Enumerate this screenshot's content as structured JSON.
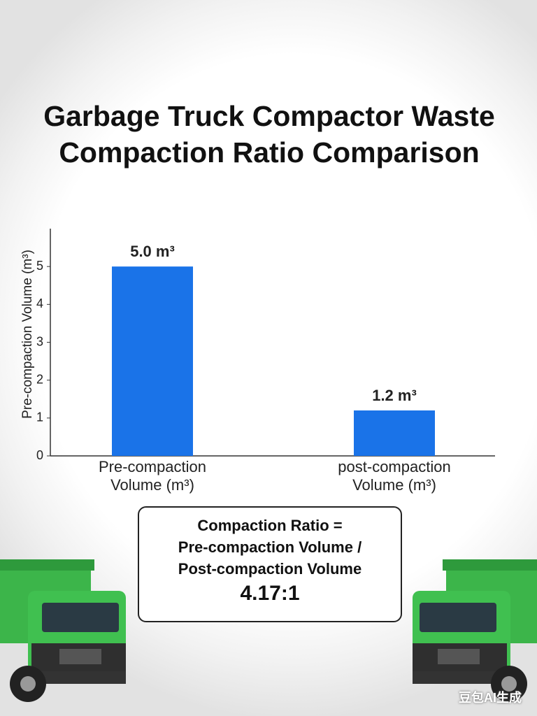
{
  "chart_data": {
    "type": "bar",
    "title": "Garbage Truck Compactor Waste Compaction Ratio Comparison",
    "y_label": "Pre-compaction Volume (m³)",
    "categories": [
      "Pre-compaction Volume (m³)",
      "post-compaction Volume (m³)"
    ],
    "values": [
      5.0,
      1.2
    ],
    "value_labels": [
      "5.0 m³",
      "1.2 m³"
    ],
    "color": "#1a73e8",
    "ylim": [
      0,
      6
    ],
    "yticks": [
      0,
      1,
      2,
      3,
      4,
      5
    ],
    "grid": false,
    "annotations": [
      "Compaction Ratio =",
      "Pre-compaction Volume /",
      "Post-compaction Volume",
      "4.17:1"
    ]
  },
  "watermark": "豆包AI生成"
}
